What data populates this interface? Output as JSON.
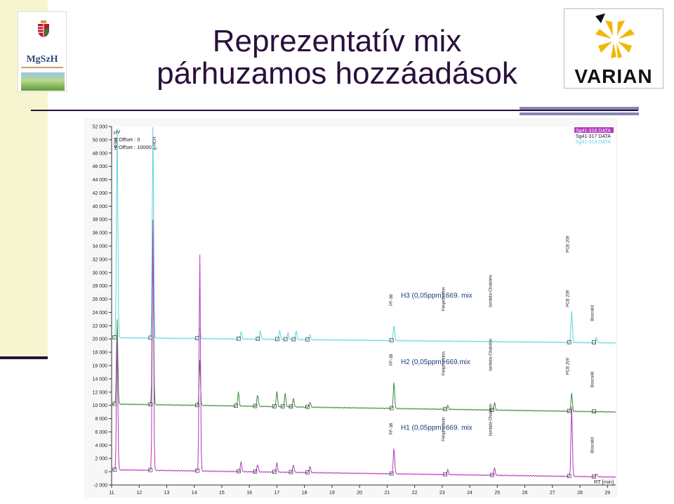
{
  "slide": {
    "title_line1": "Reprezentatív mix",
    "title_line2": "párhuzamos hozzáadások"
  },
  "logos": {
    "left": "MgSzH",
    "right": "VARIAN"
  },
  "chart_data": {
    "type": "line",
    "y_unit": "µV",
    "x_unit": "RT [min]",
    "xlim": [
      11,
      29.3
    ],
    "ylim": [
      -2000,
      52000
    ],
    "x_ticks": [
      11,
      12,
      13,
      14,
      15,
      16,
      17,
      18,
      19,
      20,
      21,
      22,
      23,
      24,
      25,
      26,
      27,
      28,
      29
    ],
    "y_ticks": [
      -2000,
      0,
      2000,
      4000,
      6000,
      8000,
      10000,
      12000,
      14000,
      16000,
      18000,
      20000,
      22000,
      24000,
      26000,
      28000,
      30000,
      32000,
      34000,
      36000,
      38000,
      40000,
      42000,
      44000,
      46000,
      48000,
      50000,
      52000
    ],
    "y_tick_labels": [
      "-2 000",
      "0",
      "2 000",
      "4 000",
      "6 000",
      "8 000",
      "10 000",
      "12 000",
      "14 000",
      "16 000",
      "18 000",
      "20 000",
      "22 000",
      "24 000",
      "26 000",
      "28 000",
      "30 000",
      "32 000",
      "34 000",
      "36 000",
      "38 000",
      "40 000",
      "42 000",
      "44 000",
      "46 000",
      "48 000",
      "50 000",
      "52 000"
    ],
    "offset_info": [
      "µV",
      "X Offset : 0",
      "Y Offset : 10000"
    ],
    "legend": [
      "Sg41-316 DATA",
      "Sg41-317 DATA",
      "Sg41-318 DATA"
    ],
    "legend_position": "top-right",
    "series": [
      {
        "name": "Sg41-316 DATA",
        "color": "#5bd3dd",
        "annotation": "H3 (0,05ppm) 669. mix",
        "baseline_start": 20200,
        "baseline_end": 19400,
        "peaks": [
          [
            11.2,
            52000
          ],
          [
            12.5,
            52000
          ],
          [
            14.2,
            21800
          ],
          [
            15.7,
            21300
          ],
          [
            16.4,
            21500
          ],
          [
            17.1,
            21600
          ],
          [
            17.4,
            21200
          ],
          [
            17.7,
            21500
          ],
          [
            18.2,
            21000
          ],
          [
            21.25,
            22500
          ],
          [
            27.7,
            25000
          ],
          [
            28.6,
            21000
          ]
        ]
      },
      {
        "name": "Sg41-317 DATA",
        "color": "#3a8b3a",
        "annotation": "H2 (0,05ppm) 669.mix",
        "baseline_start": 10200,
        "baseline_end": 9000,
        "peaks": [
          [
            11.2,
            23000
          ],
          [
            12.5,
            36000
          ],
          [
            14.2,
            17000
          ],
          [
            15.6,
            12300
          ],
          [
            16.3,
            12000
          ],
          [
            17.0,
            12500
          ],
          [
            17.3,
            12200
          ],
          [
            17.6,
            11500
          ],
          [
            18.2,
            11000
          ],
          [
            21.25,
            14200
          ],
          [
            23.2,
            10800
          ],
          [
            24.9,
            11300
          ],
          [
            27.7,
            13000
          ],
          [
            28.6,
            10200
          ]
        ]
      },
      {
        "name": "Sg41-318 DATA",
        "color": "#b636c2",
        "annotation": "H1 (0,05ppm) 669. mix",
        "baseline_start": 300,
        "baseline_end": -800,
        "peaks": [
          [
            11.2,
            20000
          ],
          [
            12.5,
            38000
          ],
          [
            14.2,
            33000
          ],
          [
            15.7,
            1800
          ],
          [
            16.3,
            1500
          ],
          [
            17.0,
            1700
          ],
          [
            17.6,
            1500
          ],
          [
            18.2,
            1300
          ],
          [
            21.25,
            4200
          ],
          [
            23.2,
            1000
          ],
          [
            24.9,
            1400
          ],
          [
            27.7,
            10800
          ],
          [
            28.6,
            800
          ]
        ]
      }
    ],
    "peak_labels": [
      {
        "text": "HEBr2",
        "x": 11.2,
        "y": 48500
      },
      {
        "text": "g-HCH",
        "x": 12.6,
        "y": 48500
      },
      {
        "text": "PF-38",
        "x": 21.2,
        "y": 25000
      },
      {
        "text": "Fenpropatrin",
        "x": 23.1,
        "y": 24200
      },
      {
        "text": "lambda-Chalotrin",
        "x": 24.8,
        "y": 24800
      },
      {
        "text": "PCB 209",
        "x": 27.6,
        "y": 33000
      },
      {
        "text": "PCB 209",
        "x": 27.6,
        "y": 24800
      },
      {
        "text": "Boscalid",
        "x": 28.5,
        "y": 22700
      },
      {
        "text": "PF-38",
        "x": 21.2,
        "y": 16000
      },
      {
        "text": "Fenpropatrin",
        "x": 23.1,
        "y": 14500
      },
      {
        "text": "lambda-Chalotrin",
        "x": 24.8,
        "y": 15200
      },
      {
        "text": "PCB 209",
        "x": 27.6,
        "y": 14600
      },
      {
        "text": "Boscalid",
        "x": 28.5,
        "y": 12700
      },
      {
        "text": "PF-38",
        "x": 21.2,
        "y": 5600
      },
      {
        "text": "Fenpropatrin",
        "x": 23.1,
        "y": 4600
      },
      {
        "text": "lambda-Chalotrin",
        "x": 24.8,
        "y": 5400
      },
      {
        "text": "Boscalid",
        "x": 28.5,
        "y": 2800
      }
    ]
  }
}
